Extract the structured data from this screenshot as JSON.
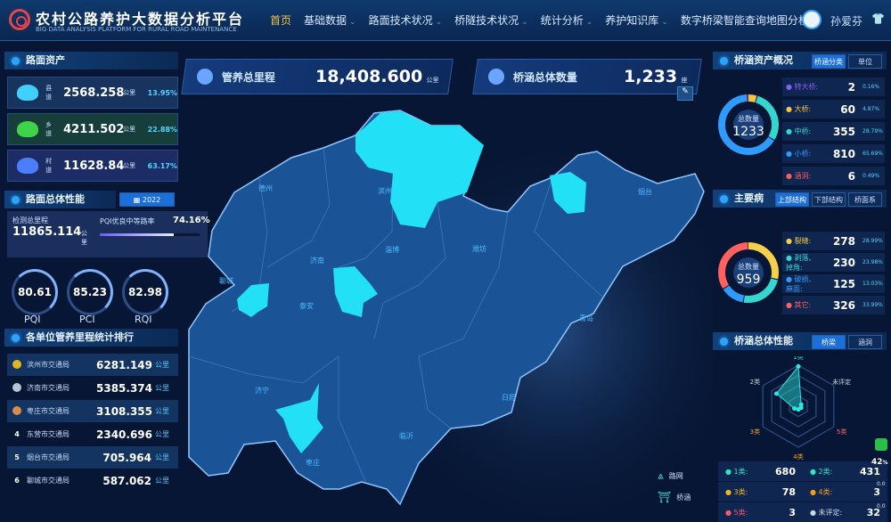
{
  "header": {
    "title": "农村公路养护大数据分析平台",
    "subtitle": "BIG DATA ANALYSIS PLATFORM FOR RURAL ROAD MAINTENANCE",
    "nav": [
      {
        "label": "首页",
        "active": true
      },
      {
        "label": "基础数据",
        "dropdown": true
      },
      {
        "label": "路面技术状况",
        "dropdown": true
      },
      {
        "label": "桥隧技术状况",
        "dropdown": true
      },
      {
        "label": "统计分析",
        "dropdown": true
      },
      {
        "label": "养护知识库",
        "dropdown": true
      },
      {
        "label": "数字桥梁智能查询地图分析"
      }
    ],
    "user": "孙爱芬"
  },
  "road_assets": {
    "title": "路面资产",
    "rows": [
      {
        "label": "县道",
        "value": "2568.258",
        "unit": "公里",
        "pct": "13.95%",
        "color": "#3fd0ff"
      },
      {
        "label": "乡道",
        "value": "4211.502",
        "unit": "公里",
        "pct": "22.88%",
        "color": "#3fd34a"
      },
      {
        "label": "村道",
        "value": "11628.84",
        "unit": "公里",
        "pct": "63.17%",
        "color": "#4c7dff"
      }
    ]
  },
  "road_performance": {
    "title": "路面总体性能",
    "year": "2022",
    "detect_label": "检测总里程",
    "detect_value": "11865.114",
    "detect_unit": "公里",
    "pqi_rate_label": "PQI优良中等路率",
    "pqi_rate": "74.16%",
    "pqi_rate_value": 74.16,
    "gauges": [
      {
        "name": "PQI",
        "value": "80.61"
      },
      {
        "name": "PCI",
        "value": "85.23"
      },
      {
        "name": "RQI",
        "value": "82.98"
      }
    ]
  },
  "ranking": {
    "title": "各单位管养里程统计排行",
    "rows": [
      {
        "rank": "1",
        "name": "滨州市交通局",
        "value": "6281.149",
        "unit": "公里",
        "medal": "#e2b623"
      },
      {
        "rank": "2",
        "name": "济南市交通局",
        "value": "5385.374",
        "unit": "公里",
        "medal": "#b9c2cf"
      },
      {
        "rank": "3",
        "name": "枣庄市交通局",
        "value": "3108.355",
        "unit": "公里",
        "medal": "#d98a4e"
      },
      {
        "rank": "4",
        "name": "东营市交通局",
        "value": "2340.696",
        "unit": "公里"
      },
      {
        "rank": "5",
        "name": "烟台市交通局",
        "value": "705.964",
        "unit": "公里"
      },
      {
        "rank": "6",
        "name": "聊城市交通局",
        "value": "587.062",
        "unit": "公里"
      }
    ]
  },
  "kpis": [
    {
      "label": "管养总里程",
      "value": "18,408.600",
      "unit": "公里"
    },
    {
      "label": "桥涵总体数量",
      "value": "1,233",
      "unit": "座"
    }
  ],
  "map": {
    "cities": [
      "德州",
      "滨州",
      "淄博",
      "济南",
      "聊城",
      "泰安",
      "潍坊",
      "烟台",
      "青岛",
      "济宁",
      "枣庄",
      "临沂",
      "日照"
    ],
    "highlight_color": "#22e0f5",
    "legend": [
      "路网",
      "桥涵"
    ]
  },
  "bridge_assets": {
    "title": "桥涵资产概况",
    "tabs": [
      "桥涵分类",
      "单位"
    ],
    "active_tab": 0,
    "total_label": "总数量",
    "total": "1233",
    "items": [
      {
        "name": "特大桥:",
        "value": 2,
        "pct": "0.16%",
        "color": "#8a5cf5"
      },
      {
        "name": "大桥:",
        "value": 60,
        "pct": "4.87%",
        "color": "#f5c542"
      },
      {
        "name": "中桥:",
        "value": 355,
        "pct": "28.79%",
        "color": "#36d6d0"
      },
      {
        "name": "小桥:",
        "value": 810,
        "pct": "65.69%",
        "color": "#2f9bff"
      },
      {
        "name": "涵洞:",
        "value": 6,
        "pct": "0.49%",
        "color": "#ff5a5a"
      }
    ]
  },
  "main_disease": {
    "title": "主要病",
    "tabs": [
      "上部结构",
      "下部结构",
      "桥面系"
    ],
    "active_tab": 0,
    "total_label": "总数量",
    "total": "959",
    "items": [
      {
        "name": "裂缝:",
        "value": 278,
        "pct": "28.99%",
        "color": "#f5d04a"
      },
      {
        "name": "剥落、掉角:",
        "value": 230,
        "pct": "23.98%",
        "color": "#36d6d0"
      },
      {
        "name": "破损、麻面:",
        "value": 125,
        "pct": "13.03%",
        "color": "#2f9bff"
      },
      {
        "name": "其它:",
        "value": 326,
        "pct": "33.99%",
        "color": "#ff6060"
      }
    ]
  },
  "bridge_performance": {
    "title": "桥涵总体性能",
    "tabs": [
      "桥梁",
      "涵洞"
    ],
    "active_tab": 0,
    "radar": {
      "axes": [
        "1类",
        "未评定",
        "5类",
        "4类",
        "3类",
        "2类"
      ],
      "values": [
        680,
        32,
        3,
        3,
        78,
        431
      ]
    },
    "cats": [
      {
        "name": "1类:",
        "value": "680",
        "color": "#2ee6c8"
      },
      {
        "name": "2类:",
        "value": "431",
        "color": "#2ee6c8"
      },
      {
        "name": "3类:",
        "value": "78",
        "color": "#f5b324"
      },
      {
        "name": "4类:",
        "value": "3",
        "color": "#f59a24"
      },
      {
        "name": "5类:",
        "value": "3",
        "color": "#ff5a6a"
      },
      {
        "name": "未评定:",
        "value": "32",
        "color": "#cfd8e8"
      }
    ]
  },
  "side_widget": {
    "pct": "42",
    "unit": "%",
    "rates": [
      "0.0",
      "0.0"
    ],
    "rate_unit": "K/s"
  }
}
